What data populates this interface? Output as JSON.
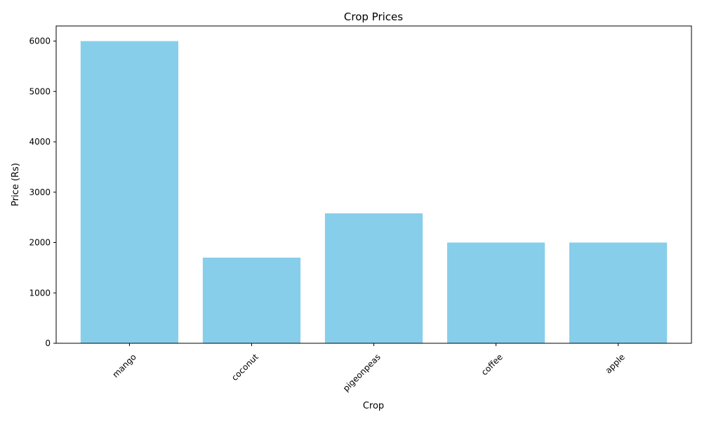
{
  "chart_data": {
    "type": "bar",
    "title": "Crop Prices",
    "xlabel": "Crop",
    "ylabel": "Price (Rs)",
    "categories": [
      "mango",
      "coconut",
      "pigeonpeas",
      "coffee",
      "apple"
    ],
    "values": [
      6000,
      1700,
      2580,
      2000,
      2000
    ],
    "ylim": [
      0,
      6300
    ],
    "yticks": [
      0,
      1000,
      2000,
      3000,
      4000,
      5000,
      6000
    ],
    "bar_color": "#87ceeb",
    "grid": false,
    "x_tick_rotation_deg": 45
  }
}
